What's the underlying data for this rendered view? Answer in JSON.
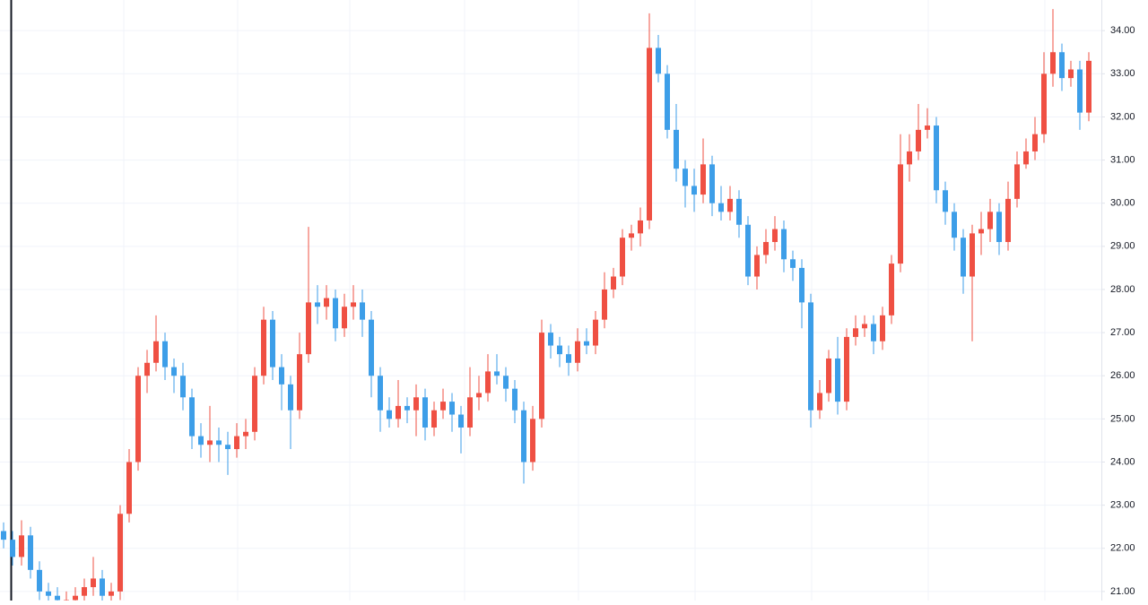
{
  "chart_data": {
    "type": "candlestick",
    "open": [
      22.4,
      22.2,
      21.8,
      22.3,
      21.5,
      21.0,
      20.9,
      20.8,
      20.8,
      20.9,
      21.1,
      21.3,
      20.9,
      21.0,
      22.8,
      24.0,
      26.0,
      26.3,
      26.8,
      26.2,
      26.0,
      25.5,
      24.6,
      24.4,
      24.5,
      24.4,
      24.3,
      24.6,
      24.7,
      26.0,
      27.3,
      26.2,
      25.8,
      25.2,
      26.5,
      27.7,
      27.6,
      27.8,
      27.1,
      27.6,
      27.7,
      27.3,
      26.0,
      25.2,
      25.0,
      25.3,
      25.2,
      25.5,
      24.8,
      25.2,
      25.4,
      25.1,
      24.8,
      25.5,
      25.6,
      26.1,
      26.0,
      25.7,
      25.2,
      24.0,
      25.0,
      27.0,
      26.7,
      26.5,
      26.3,
      26.8,
      26.7,
      27.3,
      28.0,
      28.3,
      29.2,
      29.3,
      29.6,
      33.6,
      33.0,
      31.7,
      30.8,
      30.4,
      30.2,
      30.9,
      30.0,
      29.8,
      30.1,
      29.5,
      28.3,
      28.8,
      29.1,
      29.4,
      28.7,
      28.5,
      27.7,
      25.2,
      25.6,
      26.4,
      25.4,
      26.9,
      27.1,
      27.2,
      26.8,
      27.4,
      28.6,
      30.9,
      31.2,
      31.7,
      31.8,
      30.3,
      29.8,
      29.2,
      28.3,
      29.3,
      29.4,
      29.8,
      29.1,
      30.1,
      30.9,
      31.2,
      31.6,
      33.0,
      33.5,
      32.9,
      33.1,
      32.1
    ],
    "high": [
      22.6,
      22.4,
      22.65,
      22.5,
      21.7,
      21.2,
      21.1,
      21.0,
      21.1,
      21.3,
      21.8,
      21.5,
      21.2,
      23.0,
      24.3,
      26.2,
      26.6,
      27.4,
      27.0,
      26.4,
      26.3,
      25.7,
      24.9,
      25.3,
      24.8,
      24.7,
      24.9,
      25.0,
      26.2,
      27.6,
      27.5,
      26.5,
      26.0,
      27.0,
      29.45,
      28.1,
      28.1,
      28.0,
      27.9,
      28.1,
      28.0,
      27.5,
      26.2,
      25.5,
      25.9,
      25.5,
      25.8,
      25.7,
      25.4,
      25.7,
      25.6,
      25.3,
      26.2,
      26.0,
      26.5,
      26.5,
      26.2,
      25.9,
      25.4,
      25.3,
      27.3,
      27.2,
      26.9,
      26.7,
      27.1,
      27.1,
      27.5,
      28.4,
      28.5,
      29.4,
      29.5,
      29.9,
      34.4,
      33.9,
      33.2,
      32.3,
      31.0,
      30.8,
      31.5,
      31.1,
      30.4,
      30.4,
      30.3,
      29.7,
      29.0,
      29.4,
      29.7,
      29.6,
      28.9,
      28.7,
      27.9,
      25.9,
      26.6,
      26.9,
      27.1,
      27.4,
      27.4,
      27.4,
      27.6,
      28.8,
      31.6,
      31.6,
      32.3,
      32.2,
      32.0,
      30.5,
      30.0,
      29.4,
      29.5,
      29.8,
      30.1,
      30.0,
      30.5,
      31.2,
      31.5,
      32.0,
      33.5,
      34.5,
      33.7,
      33.3,
      33.3,
      33.5
    ],
    "low": [
      22.0,
      21.6,
      21.6,
      21.3,
      20.8,
      20.7,
      20.6,
      20.6,
      20.6,
      20.7,
      20.9,
      20.7,
      20.7,
      20.8,
      22.6,
      23.8,
      25.6,
      26.1,
      25.9,
      25.6,
      25.2,
      24.3,
      24.1,
      24.0,
      24.0,
      23.7,
      24.1,
      24.3,
      24.5,
      25.8,
      25.9,
      25.2,
      24.3,
      25.0,
      26.3,
      27.2,
      27.3,
      26.8,
      26.9,
      27.3,
      26.9,
      25.5,
      24.7,
      24.8,
      24.8,
      24.9,
      24.6,
      24.5,
      24.6,
      25.0,
      24.7,
      24.2,
      24.6,
      25.2,
      25.4,
      25.8,
      25.4,
      24.9,
      23.5,
      23.8,
      24.8,
      26.4,
      26.2,
      26.0,
      26.1,
      26.5,
      26.5,
      27.1,
      27.8,
      28.1,
      28.9,
      29.0,
      29.4,
      32.8,
      31.5,
      30.5,
      29.9,
      29.8,
      30.0,
      29.7,
      29.6,
      29.6,
      29.2,
      28.1,
      28.0,
      28.6,
      28.9,
      28.4,
      28.2,
      27.1,
      24.8,
      25.0,
      25.4,
      25.1,
      25.2,
      26.7,
      26.9,
      26.5,
      26.6,
      27.2,
      28.4,
      30.5,
      31.0,
      31.5,
      30.0,
      29.5,
      28.9,
      27.9,
      26.8,
      28.8,
      29.1,
      28.8,
      28.9,
      29.9,
      30.8,
      31.0,
      31.4,
      32.7,
      32.6,
      32.7,
      31.7,
      31.9
    ],
    "close": [
      22.2,
      21.8,
      22.3,
      21.5,
      21.0,
      20.9,
      20.8,
      20.8,
      20.9,
      21.1,
      21.3,
      20.9,
      21.0,
      22.8,
      24.0,
      26.0,
      26.3,
      26.8,
      26.2,
      26.0,
      25.5,
      24.6,
      24.4,
      24.5,
      24.4,
      24.3,
      24.6,
      24.7,
      26.0,
      27.3,
      26.2,
      25.8,
      25.2,
      26.5,
      27.7,
      27.6,
      27.8,
      27.1,
      27.6,
      27.7,
      27.3,
      26.0,
      25.2,
      25.0,
      25.3,
      25.2,
      25.5,
      24.8,
      25.2,
      25.4,
      25.1,
      24.8,
      25.5,
      25.6,
      26.1,
      26.0,
      25.7,
      25.2,
      24.0,
      25.0,
      27.0,
      26.7,
      26.5,
      26.3,
      26.8,
      26.7,
      27.3,
      28.0,
      28.3,
      29.2,
      29.3,
      29.6,
      33.6,
      33.0,
      31.7,
      30.8,
      30.4,
      30.2,
      30.9,
      30.0,
      29.8,
      30.1,
      29.5,
      28.3,
      28.8,
      29.1,
      29.4,
      28.7,
      28.5,
      27.7,
      25.2,
      25.6,
      26.4,
      25.4,
      26.9,
      27.1,
      27.2,
      26.8,
      27.4,
      28.6,
      30.9,
      31.2,
      31.7,
      31.8,
      30.3,
      29.8,
      29.2,
      28.3,
      29.3,
      29.4,
      29.8,
      29.1,
      30.1,
      30.9,
      31.2,
      31.6,
      33.0,
      33.5,
      32.9,
      33.1,
      32.1,
      33.3
    ],
    "up_color": "#ef5043",
    "down_color": "#3d9ee8",
    "ylim": [
      20.79,
      34.71
    ],
    "yticks": [
      {
        "value": 21,
        "label": "21.00"
      },
      {
        "value": 22,
        "label": "22.00"
      },
      {
        "value": 23,
        "label": "23.00"
      },
      {
        "value": 24,
        "label": "24.00"
      },
      {
        "value": 25,
        "label": "25.00"
      },
      {
        "value": 26,
        "label": "26.00"
      },
      {
        "value": 27,
        "label": "27.00"
      },
      {
        "value": 28,
        "label": "28.00"
      },
      {
        "value": 29,
        "label": "29.00"
      },
      {
        "value": 30,
        "label": "30.00"
      },
      {
        "value": 31,
        "label": "31.00"
      },
      {
        "value": 32,
        "label": "32.00"
      },
      {
        "value": 33,
        "label": "33.00"
      },
      {
        "value": 34,
        "label": "34.00"
      }
    ],
    "grid": true
  }
}
